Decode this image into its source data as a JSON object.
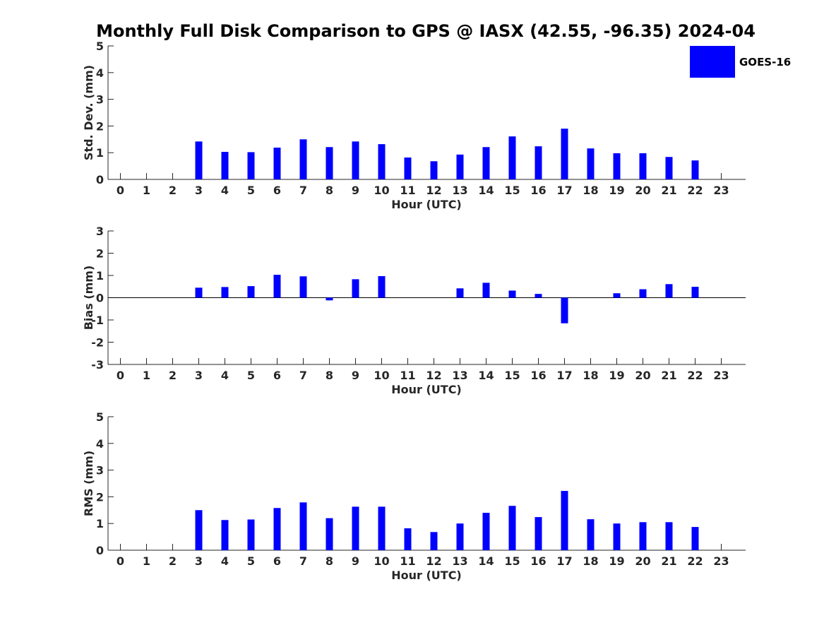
{
  "title": "Monthly Full Disk Comparison to GPS @ IASX (42.55, -96.35) 2024-04",
  "colors": {
    "bar": "#0000ff",
    "axis": "#262626"
  },
  "legend": {
    "label": "GOES-16",
    "placement": "top-right"
  },
  "chart_data": [
    {
      "type": "bar",
      "xlabel": "Hour (UTC)",
      "ylabel": "Std. Dev. (mm)",
      "ylim": [
        0,
        5
      ],
      "yticks": [
        0,
        1,
        2,
        3,
        4,
        5
      ],
      "categories": [
        "0",
        "1",
        "2",
        "3",
        "4",
        "5",
        "6",
        "7",
        "8",
        "9",
        "10",
        "11",
        "12",
        "13",
        "14",
        "15",
        "16",
        "17",
        "18",
        "19",
        "20",
        "21",
        "22",
        "23"
      ],
      "series": [
        {
          "name": "GOES-16",
          "values": [
            null,
            null,
            null,
            1.42,
            1.03,
            1.02,
            1.19,
            1.5,
            1.21,
            1.42,
            1.32,
            0.82,
            0.68,
            0.93,
            1.21,
            1.61,
            1.24,
            1.9,
            1.16,
            0.98,
            0.98,
            0.84,
            0.71,
            null
          ]
        }
      ]
    },
    {
      "type": "bar",
      "xlabel": "Hour (UTC)",
      "ylabel": "Bias (mm)",
      "ylim": [
        -3,
        3
      ],
      "yticks": [
        -3,
        -2,
        -1,
        0,
        1,
        2,
        3
      ],
      "zero_line": true,
      "categories": [
        "0",
        "1",
        "2",
        "3",
        "4",
        "5",
        "6",
        "7",
        "8",
        "9",
        "10",
        "11",
        "12",
        "13",
        "14",
        "15",
        "16",
        "17",
        "18",
        "19",
        "20",
        "21",
        "22",
        "23"
      ],
      "series": [
        {
          "name": "GOES-16",
          "values": [
            null,
            null,
            null,
            0.45,
            0.48,
            0.52,
            1.03,
            0.96,
            -0.12,
            0.83,
            0.97,
            0.0,
            0.0,
            0.42,
            0.67,
            0.32,
            0.17,
            -1.15,
            0.0,
            0.2,
            0.38,
            0.61,
            0.49,
            null
          ]
        }
      ]
    },
    {
      "type": "bar",
      "xlabel": "Hour (UTC)",
      "ylabel": "RMS (mm)",
      "ylim": [
        0,
        5
      ],
      "yticks": [
        0,
        1,
        2,
        3,
        4,
        5
      ],
      "categories": [
        "0",
        "1",
        "2",
        "3",
        "4",
        "5",
        "6",
        "7",
        "8",
        "9",
        "10",
        "11",
        "12",
        "13",
        "14",
        "15",
        "16",
        "17",
        "18",
        "19",
        "20",
        "21",
        "22",
        "23"
      ],
      "series": [
        {
          "name": "GOES-16",
          "values": [
            null,
            null,
            null,
            1.5,
            1.13,
            1.15,
            1.58,
            1.79,
            1.2,
            1.63,
            1.63,
            0.82,
            0.68,
            1.0,
            1.4,
            1.66,
            1.24,
            2.22,
            1.16,
            1.0,
            1.05,
            1.05,
            0.87,
            null
          ]
        }
      ]
    }
  ]
}
